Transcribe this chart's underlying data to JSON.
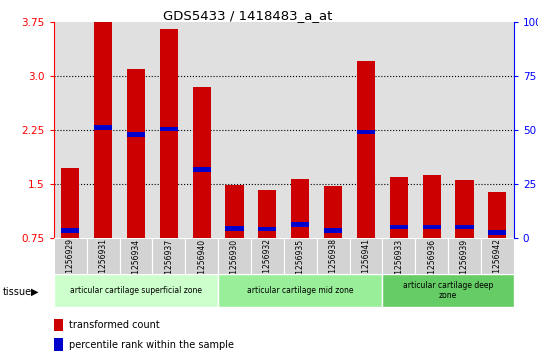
{
  "title": "GDS5433 / 1418483_a_at",
  "samples": [
    "GSM1256929",
    "GSM1256931",
    "GSM1256934",
    "GSM1256937",
    "GSM1256940",
    "GSM1256930",
    "GSM1256932",
    "GSM1256935",
    "GSM1256938",
    "GSM1256941",
    "GSM1256933",
    "GSM1256936",
    "GSM1256939",
    "GSM1256942"
  ],
  "red_values": [
    1.72,
    3.75,
    3.1,
    3.65,
    2.85,
    1.48,
    1.42,
    1.57,
    1.47,
    3.2,
    1.6,
    1.62,
    1.55,
    1.38
  ],
  "blue_values": [
    0.85,
    2.28,
    2.18,
    2.26,
    1.7,
    0.88,
    0.87,
    0.93,
    0.85,
    2.22,
    0.9,
    0.9,
    0.9,
    0.82
  ],
  "y_min": 0.75,
  "y_max": 3.75,
  "y_ticks": [
    0.75,
    1.5,
    2.25,
    3.0,
    3.75
  ],
  "right_y_labels": [
    "0",
    "25",
    "50",
    "75",
    "100%"
  ],
  "bar_color": "#cc0000",
  "blue_color": "#0000cc",
  "bg_color_plot": "#e0e0e0",
  "tissue_zones": [
    {
      "label": "articular cartilage superficial zone",
      "start": 0,
      "end": 5,
      "color": "#ccffcc"
    },
    {
      "label": "articular cartilage mid zone",
      "start": 5,
      "end": 10,
      "color": "#99ee99"
    },
    {
      "label": "articular cartilage deep\nzone",
      "start": 10,
      "end": 14,
      "color": "#66cc66"
    }
  ],
  "legend_red": "transformed count",
  "legend_blue": "percentile rank within the sample",
  "tissue_label": "tissue",
  "bar_width": 0.55
}
